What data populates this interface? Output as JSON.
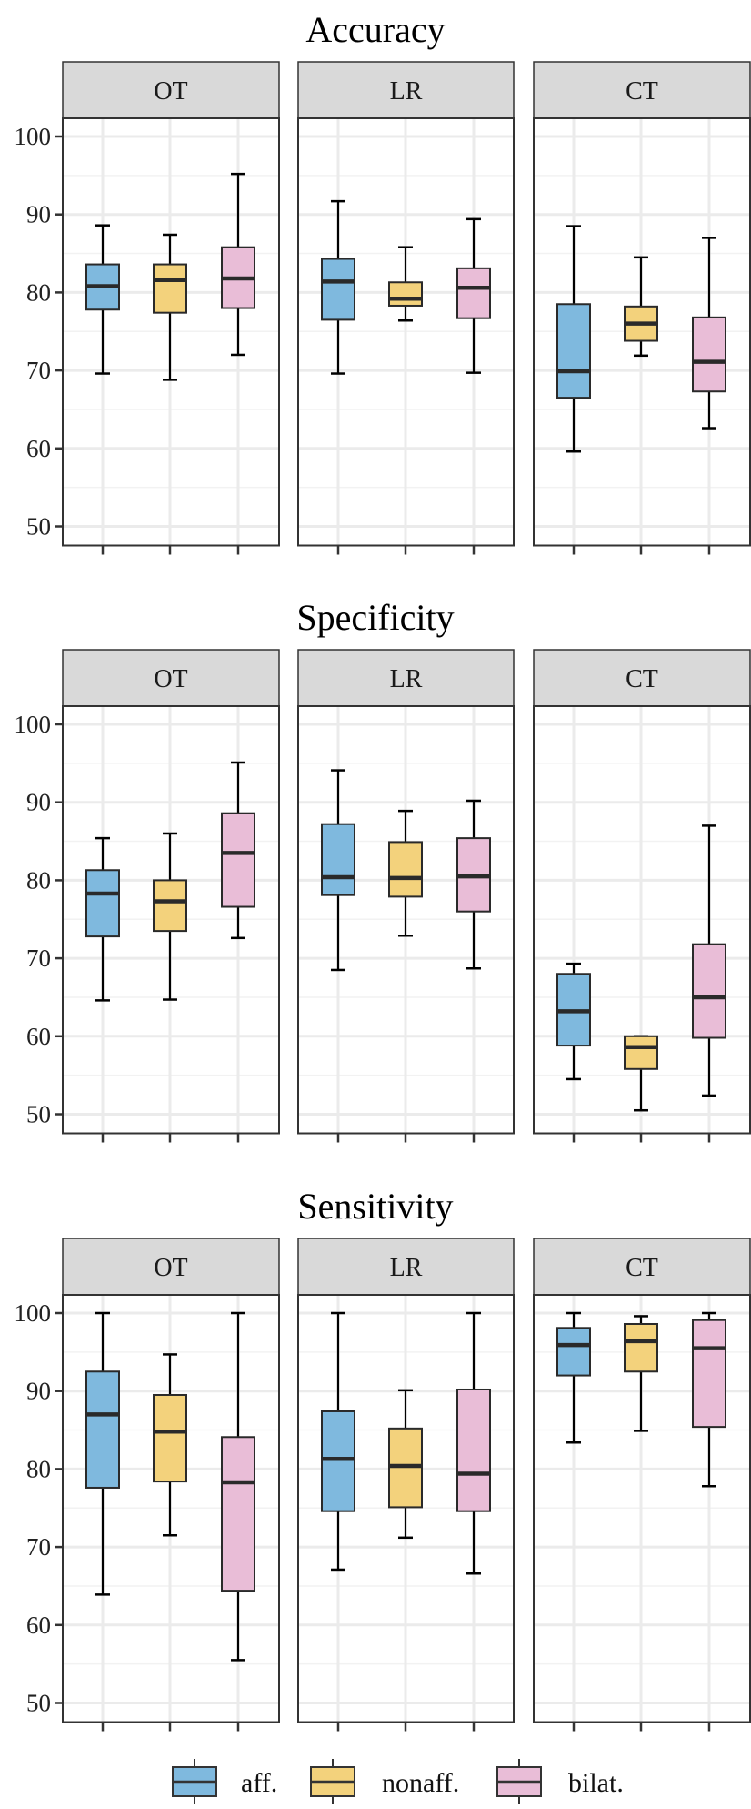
{
  "chart_data": {
    "type": "boxplot",
    "ylim": [
      50,
      100
    ],
    "yticks": [
      50,
      60,
      70,
      80,
      90,
      100
    ],
    "ytick_labels": [
      "50",
      "60",
      "70",
      "80",
      "90",
      "100"
    ],
    "grid": true,
    "legend": {
      "placement": "bottom",
      "entries": [
        "aff.",
        "nonaff.",
        "bilat."
      ]
    },
    "groups": [
      "aff.",
      "nonaff.",
      "bilat."
    ],
    "colors": {
      "aff.": "#7fb9de",
      "nonaff.": "#f3d27c",
      "bilat.": "#e9bdd7"
    },
    "box_stat_order": [
      "whisker_low",
      "q1",
      "median",
      "q3",
      "whisker_high"
    ],
    "sections": [
      {
        "title": "Accuracy",
        "panels": [
          {
            "label": "OT",
            "boxes": [
              [
                69.6,
                77.8,
                80.8,
                83.6,
                88.6
              ],
              [
                68.8,
                77.4,
                81.6,
                83.6,
                87.4
              ],
              [
                72.0,
                78.0,
                81.8,
                85.8,
                95.2
              ]
            ]
          },
          {
            "label": "LR",
            "boxes": [
              [
                69.6,
                76.5,
                81.4,
                84.3,
                91.7
              ],
              [
                76.4,
                78.3,
                79.2,
                81.3,
                85.8
              ],
              [
                69.7,
                76.7,
                80.6,
                83.1,
                89.4
              ]
            ]
          },
          {
            "label": "CT",
            "boxes": [
              [
                59.6,
                66.5,
                69.9,
                78.5,
                88.5
              ],
              [
                71.9,
                73.8,
                76.0,
                78.2,
                84.5
              ],
              [
                62.6,
                67.3,
                71.1,
                76.8,
                87.0
              ]
            ]
          }
        ]
      },
      {
        "title": "Specificity",
        "panels": [
          {
            "label": "OT",
            "boxes": [
              [
                64.6,
                72.8,
                78.3,
                81.3,
                85.4
              ],
              [
                64.7,
                73.5,
                77.3,
                80.0,
                86.0
              ],
              [
                72.6,
                76.6,
                83.5,
                88.6,
                95.1
              ]
            ]
          },
          {
            "label": "LR",
            "boxes": [
              [
                68.5,
                78.1,
                80.4,
                87.2,
                94.1
              ],
              [
                72.9,
                77.9,
                80.3,
                84.9,
                88.9
              ],
              [
                68.7,
                76.0,
                80.5,
                85.4,
                90.2
              ]
            ]
          },
          {
            "label": "CT",
            "boxes": [
              [
                54.5,
                58.8,
                63.2,
                68.0,
                69.3
              ],
              [
                50.5,
                55.8,
                58.6,
                60.0,
                60.0
              ],
              [
                52.4,
                59.8,
                65.0,
                71.8,
                87.0
              ]
            ]
          }
        ]
      },
      {
        "title": "Sensitivity",
        "panels": [
          {
            "label": "OT",
            "boxes": [
              [
                63.9,
                77.6,
                87.0,
                92.5,
                100
              ],
              [
                71.5,
                78.4,
                84.8,
                89.5,
                94.7
              ],
              [
                55.5,
                64.4,
                78.3,
                84.1,
                100
              ]
            ]
          },
          {
            "label": "LR",
            "boxes": [
              [
                67.1,
                74.6,
                81.3,
                87.4,
                100
              ],
              [
                71.2,
                75.1,
                80.4,
                85.2,
                90.1
              ],
              [
                66.6,
                74.6,
                79.4,
                90.2,
                100
              ]
            ]
          },
          {
            "label": "CT",
            "boxes": [
              [
                83.4,
                92.0,
                95.9,
                98.1,
                100
              ],
              [
                84.9,
                92.5,
                96.4,
                98.6,
                99.6
              ],
              [
                77.8,
                85.4,
                95.5,
                99.1,
                100
              ]
            ]
          }
        ]
      }
    ]
  }
}
